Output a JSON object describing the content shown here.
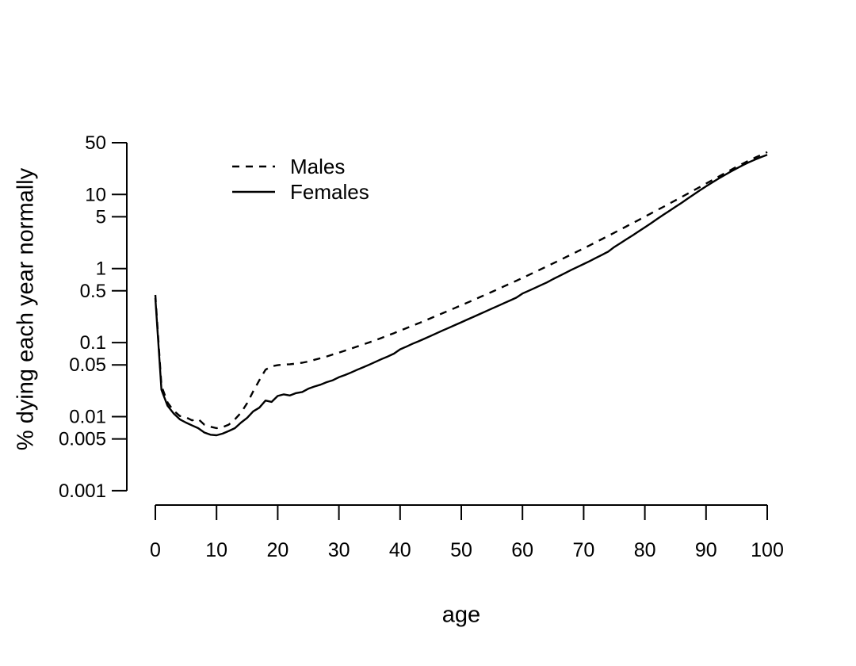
{
  "figure": {
    "background_color": "#ffffff",
    "foreground_color": "#000000"
  },
  "chart_data": {
    "type": "line",
    "title": "",
    "xlabel": "age",
    "ylabel": "% dying each year normally",
    "y_scale": "log",
    "grid": false,
    "xlim": [
      0,
      100
    ],
    "ylim": [
      0.001,
      50
    ],
    "x_tick_labels": [
      "0",
      "10",
      "20",
      "30",
      "40",
      "50",
      "60",
      "70",
      "80",
      "90",
      "100"
    ],
    "x_ticks": [
      0,
      10,
      20,
      30,
      40,
      50,
      60,
      70,
      80,
      90,
      100
    ],
    "y_tick_labels": [
      "50",
      "10",
      "5",
      "1",
      "0.5",
      "0.1",
      "0.05",
      "0.01",
      "0.005",
      "0.001"
    ],
    "y_ticks": [
      50,
      10,
      5,
      1,
      0.5,
      0.1,
      0.05,
      0.01,
      0.005,
      0.001
    ],
    "legend": {
      "position": "top-left-inside",
      "entries": [
        {
          "label": "Males",
          "style": "dashed"
        },
        {
          "label": "Females",
          "style": "solid"
        }
      ]
    },
    "x": [
      0,
      1,
      2,
      3,
      4,
      5,
      6,
      7,
      8,
      9,
      10,
      11,
      12,
      13,
      14,
      15,
      16,
      17,
      18,
      19,
      20,
      21,
      22,
      23,
      24,
      25,
      26,
      27,
      28,
      29,
      30,
      31,
      32,
      33,
      34,
      35,
      36,
      37,
      38,
      39,
      40,
      41,
      42,
      43,
      44,
      45,
      46,
      47,
      48,
      49,
      50,
      51,
      52,
      53,
      54,
      55,
      56,
      57,
      58,
      59,
      60,
      61,
      62,
      63,
      64,
      65,
      66,
      67,
      68,
      69,
      70,
      71,
      72,
      73,
      74,
      75,
      76,
      77,
      78,
      79,
      80,
      81,
      82,
      83,
      84,
      85,
      86,
      87,
      88,
      89,
      90,
      91,
      92,
      93,
      94,
      95,
      96,
      97,
      98,
      99,
      100
    ],
    "series": [
      {
        "name": "Males",
        "style": "dashed",
        "values": [
          0.44,
          0.026,
          0.0155,
          0.012,
          0.0102,
          0.0098,
          0.0089,
          0.0093,
          0.0078,
          0.0073,
          0.007,
          0.0072,
          0.0078,
          0.0092,
          0.0113,
          0.0152,
          0.022,
          0.031,
          0.043,
          0.048,
          0.0495,
          0.0505,
          0.051,
          0.052,
          0.0535,
          0.0555,
          0.0585,
          0.0615,
          0.065,
          0.069,
          0.073,
          0.078,
          0.083,
          0.0885,
          0.0945,
          0.101,
          0.108,
          0.116,
          0.125,
          0.134,
          0.145,
          0.156,
          0.169,
          0.182,
          0.197,
          0.213,
          0.231,
          0.25,
          0.271,
          0.294,
          0.319,
          0.346,
          0.376,
          0.409,
          0.445,
          0.484,
          0.527,
          0.575,
          0.627,
          0.684,
          0.748,
          0.817,
          0.893,
          0.977,
          1.07,
          1.172,
          1.285,
          1.41,
          1.549,
          1.702,
          1.872,
          2.06,
          2.27,
          2.5,
          2.76,
          3.04,
          3.36,
          3.71,
          4.1,
          4.53,
          5.01,
          5.54,
          6.13,
          6.79,
          7.52,
          8.33,
          9.24,
          10.25,
          11.38,
          12.63,
          14.03,
          15.58,
          17.31,
          19.24,
          21.37,
          23.7,
          26.1,
          28.7,
          31.4,
          34.2,
          37.4
        ]
      },
      {
        "name": "Females",
        "style": "solid",
        "values": [
          0.4,
          0.023,
          0.014,
          0.011,
          0.0092,
          0.0083,
          0.0076,
          0.007,
          0.0061,
          0.0057,
          0.0056,
          0.0059,
          0.0064,
          0.007,
          0.0083,
          0.0096,
          0.0118,
          0.0132,
          0.0165,
          0.0158,
          0.019,
          0.02,
          0.0193,
          0.0208,
          0.0215,
          0.0238,
          0.0255,
          0.027,
          0.0292,
          0.031,
          0.034,
          0.0365,
          0.0395,
          0.043,
          0.0465,
          0.0505,
          0.055,
          0.06,
          0.065,
          0.071,
          0.081,
          0.088,
          0.096,
          0.104,
          0.113,
          0.123,
          0.134,
          0.146,
          0.159,
          0.173,
          0.188,
          0.205,
          0.223,
          0.243,
          0.264,
          0.288,
          0.313,
          0.341,
          0.371,
          0.404,
          0.46,
          0.5,
          0.545,
          0.595,
          0.65,
          0.72,
          0.79,
          0.87,
          0.96,
          1.05,
          1.15,
          1.26,
          1.39,
          1.53,
          1.69,
          1.95,
          2.2,
          2.48,
          2.8,
          3.18,
          3.6,
          4.08,
          4.65,
          5.3,
          6.0,
          6.8,
          7.7,
          8.8,
          10.0,
          11.4,
          12.9,
          14.5,
          16.3,
          18.2,
          20.3,
          22.5,
          24.8,
          27.2,
          29.6,
          32.0,
          34.3
        ]
      }
    ]
  }
}
